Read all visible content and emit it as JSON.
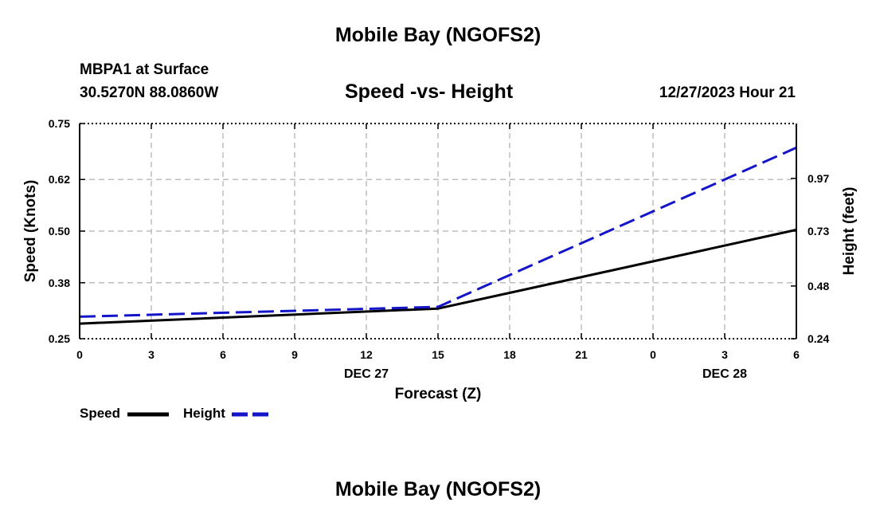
{
  "page": {
    "main_title": "Mobile Bay (NGOFS2)",
    "station": "MBPA1 at Surface",
    "coords": "30.5270N  88.0860W",
    "chart_title": "Speed -vs- Height",
    "timestamp": "12/27/2023 Hour 21",
    "footer_title": "Mobile Bay (NGOFS2)"
  },
  "legend": {
    "speed_label": "Speed",
    "height_label": "Height"
  },
  "colors": {
    "speed": "#000000",
    "height": "#1414c8",
    "grid": "#bdbdbd"
  },
  "chart_data": {
    "type": "line",
    "title": "Speed -vs- Height",
    "xlabel": "Forecast (Z)",
    "ylabel": "Speed (Knots)",
    "y2label": "Height (feet)",
    "x": [
      0,
      3,
      6,
      9,
      12,
      15,
      18,
      21,
      24,
      27,
      30
    ],
    "x_tick_labels": [
      "0",
      "3",
      "6",
      "9",
      "12",
      "15",
      "18",
      "21",
      "0",
      "3",
      "6"
    ],
    "date_labels": [
      {
        "x": 12,
        "label": "DEC 27"
      },
      {
        "x": 27,
        "label": "DEC 28"
      }
    ],
    "xlim": [
      0,
      30
    ],
    "ylim": [
      0.25,
      0.75
    ],
    "y_ticks": [
      "0.25",
      "0.38",
      "0.50",
      "0.62",
      "0.75"
    ],
    "y2lim": [
      0.24,
      1.22
    ],
    "y2_ticks": [
      "0.24",
      "0.48",
      "0.73",
      "0.97"
    ],
    "grid": true,
    "series": [
      {
        "name": "Speed",
        "axis": "left",
        "style": "solid",
        "x": [
          0,
          15,
          30
        ],
        "values": [
          0.285,
          0.32,
          0.503
        ]
      },
      {
        "name": "Height",
        "axis": "right",
        "style": "dashed",
        "x": [
          0,
          15,
          30
        ],
        "values": [
          0.34,
          0.385,
          1.11
        ]
      }
    ]
  }
}
